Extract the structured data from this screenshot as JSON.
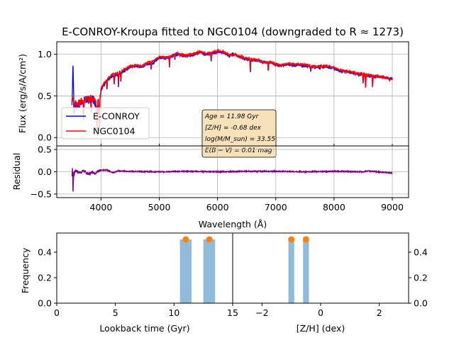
{
  "figure": {
    "title": "E-CONROY-Kroupa fitted to NGC0104 (downgraded to R ≈ 1273)"
  },
  "chart_data": [
    {
      "type": "line",
      "panel": "spectrum",
      "ylabel": "Flux (erg/s/A/cm²)",
      "xlim": [
        3240,
        9280
      ],
      "ylim": [
        -0.1,
        1.15
      ],
      "yticks": [
        0.0,
        0.5,
        1.0
      ],
      "ytick_labels": [
        "0.0",
        "0.5",
        "1.0"
      ],
      "xticks": [
        4000,
        5000,
        6000,
        7000,
        8000,
        9000
      ],
      "grid": true,
      "legend_position": "left-middle",
      "series": [
        {
          "name": "E-CONROY",
          "color": "#0000ff",
          "x": [
            3500,
            3520,
            3535,
            3550,
            3600,
            3650,
            3700,
            3750,
            3800,
            3850,
            3900,
            3930,
            3950,
            3970,
            4000,
            4100,
            4200,
            4300,
            4400,
            4500,
            4600,
            4700,
            4800,
            4900,
            5000,
            5100,
            5200,
            5300,
            5400,
            5500,
            5600,
            5700,
            5800,
            5900,
            6000,
            6100,
            6200,
            6300,
            6400,
            6500,
            6600,
            6700,
            6800,
            6900,
            7000,
            7100,
            7200,
            7300,
            7400,
            7500,
            7600,
            7700,
            7800,
            7900,
            8000,
            8100,
            8200,
            8300,
            8400,
            8500,
            8600,
            8700,
            8800,
            8900,
            9000
          ],
          "y": [
            0.35,
            0.9,
            0.3,
            0.4,
            0.38,
            0.41,
            0.44,
            0.45,
            0.45,
            0.47,
            0.42,
            0.35,
            0.45,
            0.35,
            0.58,
            0.68,
            0.74,
            0.76,
            0.8,
            0.85,
            0.86,
            0.85,
            0.88,
            0.9,
            0.96,
            0.95,
            0.97,
            1.0,
            0.98,
            0.98,
            1.0,
            1.02,
            1.0,
            1.01,
            1.03,
            1.02,
            0.98,
            1.0,
            0.96,
            0.94,
            0.93,
            0.92,
            0.9,
            0.9,
            0.88,
            0.86,
            0.88,
            0.87,
            0.87,
            0.86,
            0.85,
            0.84,
            0.85,
            0.85,
            0.83,
            0.8,
            0.79,
            0.78,
            0.76,
            0.76,
            0.74,
            0.73,
            0.73,
            0.72,
            0.71
          ]
        },
        {
          "name": "NGC0104",
          "color": "#ff0000",
          "x": [
            3500,
            3520,
            3535,
            3550,
            3600,
            3650,
            3700,
            3750,
            3800,
            3850,
            3900,
            3930,
            3950,
            3970,
            4000,
            4100,
            4200,
            4300,
            4400,
            4500,
            4600,
            4700,
            4800,
            4900,
            5000,
            5100,
            5200,
            5300,
            5400,
            5500,
            5600,
            5700,
            5800,
            5900,
            6000,
            6100,
            6200,
            6300,
            6400,
            6500,
            6600,
            6700,
            6800,
            6900,
            7000,
            7100,
            7200,
            7300,
            7400,
            7500,
            7600,
            7700,
            7800,
            7900,
            8000,
            8100,
            8200,
            8300,
            8400,
            8500,
            8600,
            8700,
            8800,
            8900,
            9000
          ],
          "y": [
            0.45,
            0.5,
            0.3,
            0.42,
            0.4,
            0.43,
            0.46,
            0.47,
            0.46,
            0.48,
            0.44,
            0.36,
            0.47,
            0.36,
            0.6,
            0.7,
            0.76,
            0.78,
            0.82,
            0.86,
            0.87,
            0.86,
            0.9,
            0.92,
            0.97,
            0.96,
            0.98,
            1.01,
            0.99,
            0.99,
            1.01,
            1.03,
            1.01,
            1.02,
            1.04,
            1.03,
            0.99,
            1.0,
            0.97,
            0.95,
            0.94,
            0.93,
            0.9,
            0.91,
            0.88,
            0.87,
            0.89,
            0.88,
            0.88,
            0.87,
            0.86,
            0.85,
            0.86,
            0.86,
            0.84,
            0.81,
            0.8,
            0.79,
            0.77,
            0.77,
            0.75,
            0.74,
            0.73,
            0.72,
            0.7
          ]
        }
      ],
      "absorption_lines": [
        {
          "x": 3700,
          "depth": 0.2
        },
        {
          "x": 3830,
          "depth": 0.15
        },
        {
          "x": 3933,
          "depth": 0.25
        },
        {
          "x": 3968,
          "depth": 0.25
        },
        {
          "x": 4102,
          "depth": 0.12
        },
        {
          "x": 4226,
          "depth": 0.14
        },
        {
          "x": 4300,
          "depth": 0.14
        },
        {
          "x": 4340,
          "depth": 0.1
        },
        {
          "x": 4861,
          "depth": 0.08
        },
        {
          "x": 5175,
          "depth": 0.12
        },
        {
          "x": 5270,
          "depth": 0.06
        },
        {
          "x": 5890,
          "depth": 0.1
        },
        {
          "x": 6563,
          "depth": 0.15
        },
        {
          "x": 6870,
          "depth": 0.12
        },
        {
          "x": 7600,
          "depth": 0.05
        },
        {
          "x": 8498,
          "depth": 0.12
        },
        {
          "x": 8542,
          "depth": 0.18
        },
        {
          "x": 8662,
          "depth": 0.14
        },
        {
          "x": 8950,
          "depth": 0.04
        }
      ],
      "annotation": {
        "lines": [
          "Age = 11.98 Gyr",
          "[Z/H] = -0.68 dex",
          "log(M/M_sun) = 33.55",
          "E(B − V) = 0.01 mag"
        ]
      }
    },
    {
      "type": "line",
      "panel": "residual",
      "ylabel": "Residual",
      "xlabel": "Wavelength (Å)",
      "xlim": [
        3240,
        9280
      ],
      "ylim": [
        -0.58,
        0.58
      ],
      "yticks": [
        -0.5,
        0.0,
        0.5
      ],
      "ytick_labels": [
        "−0.5",
        "0.0",
        "0.5"
      ],
      "xticks": [
        4000,
        5000,
        6000,
        7000,
        8000,
        9000
      ],
      "xtick_labels": [
        "4000",
        "5000",
        "6000",
        "7000",
        "8000",
        "9000"
      ],
      "grid": true,
      "series": [
        {
          "name": "",
          "color": "#800080",
          "x": [
            3500,
            3510,
            3520,
            3530,
            3540,
            3550,
            3600,
            3650,
            3700,
            3750,
            3800,
            3850,
            3900,
            3950,
            4000,
            4100,
            4200,
            4300,
            4500,
            5000,
            5500,
            6000,
            6500,
            7000,
            7500,
            8000,
            8500,
            8600,
            9000
          ],
          "y": [
            -0.1,
            0.12,
            -0.52,
            0.0,
            -0.08,
            0.02,
            0.0,
            -0.02,
            0.03,
            -0.03,
            -0.05,
            0.0,
            -0.04,
            0.02,
            0.03,
            0.04,
            -0.02,
            0.02,
            0.01,
            0.0,
            0.01,
            0.0,
            0.01,
            0.01,
            0.0,
            0.01,
            0.0,
            0.02,
            -0.03
          ]
        }
      ]
    },
    {
      "type": "bar",
      "panel": "age-histogram",
      "xlabel": "Lookback time (Gyr)",
      "ylabel": "Frequency",
      "xlim": [
        0,
        15
      ],
      "ylim": [
        0,
        0.55
      ],
      "xticks": [
        0,
        5,
        10,
        15
      ],
      "xtick_labels": [
        "0",
        "5",
        "10",
        "15"
      ],
      "yticks": [
        0.0,
        0.2,
        0.4
      ],
      "ytick_labels": [
        "0.0",
        "0.2",
        "0.4"
      ],
      "bars": [
        {
          "x0": 10.5,
          "x1": 11.5,
          "value": 0.5
        },
        {
          "x0": 12.5,
          "x1": 13.5,
          "value": 0.5
        }
      ],
      "markers": [
        {
          "x": 11.0,
          "y": 0.5
        },
        {
          "x": 13.0,
          "y": 0.5
        }
      ],
      "bar_color": "#8fbcdb",
      "marker_color": "#ff7f0e"
    },
    {
      "type": "bar",
      "panel": "metallicity-histogram",
      "xlabel": "[Z/H] (dex)",
      "xlim": [
        -3.0,
        3.0
      ],
      "ylim": [
        0,
        0.55
      ],
      "xticks": [
        -2,
        0,
        2
      ],
      "xtick_labels": [
        "−2",
        "0",
        "2"
      ],
      "yticks": [
        0.0,
        0.2,
        0.4
      ],
      "ytick_labels": [
        "0.0",
        "0.2",
        "0.4"
      ],
      "bars": [
        {
          "x0": -1.1,
          "x1": -0.9,
          "value": 0.5
        },
        {
          "x0": -0.6,
          "x1": -0.4,
          "value": 0.5
        }
      ],
      "markers": [
        {
          "x": -1.0,
          "y": 0.5
        },
        {
          "x": -0.5,
          "y": 0.5
        }
      ],
      "bar_color": "#8fbcdb",
      "marker_color": "#ff7f0e"
    }
  ]
}
